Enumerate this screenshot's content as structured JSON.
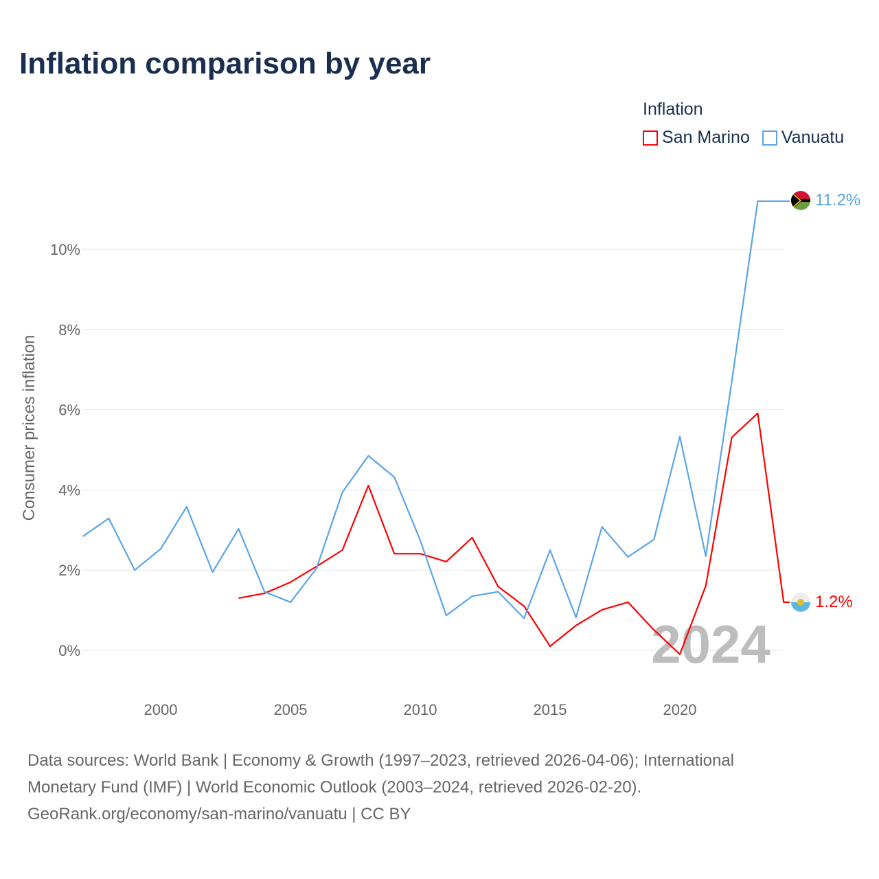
{
  "title": "Inflation comparison by year",
  "legend": {
    "title": "Inflation",
    "items": [
      {
        "label": "San Marino",
        "color": "#ff0000"
      },
      {
        "label": "Vanuatu",
        "color": "#5ba4e6"
      }
    ]
  },
  "watermark_year": "2024",
  "end_labels": {
    "vanuatu": "11.2%",
    "san_marino": "1.2%"
  },
  "footer": {
    "line1": "Data sources: World Bank | Economy & Growth (1997–2023, retrieved 2026-04-06); International",
    "line2": "Monetary Fund (IMF) | World Economic Outlook (2003–2024, retrieved 2026-02-20).",
    "line3": "GeoRank.org/economy/san-marino/vanuatu | CC BY"
  },
  "chart_data": {
    "type": "line",
    "title": "Inflation comparison by year",
    "xlabel": "",
    "ylabel": "Consumer prices inflation",
    "xlim": [
      1997,
      2024
    ],
    "ylim": [
      -1,
      12
    ],
    "xticks": [
      2000,
      2005,
      2010,
      2015,
      2020
    ],
    "yticks": [
      {
        "v": 0,
        "label": "0%"
      },
      {
        "v": 2,
        "label": "2%"
      },
      {
        "v": 4,
        "label": "4%"
      },
      {
        "v": 6,
        "label": "6%"
      },
      {
        "v": 8,
        "label": "8%"
      },
      {
        "v": 10,
        "label": "10%"
      }
    ],
    "grid": true,
    "legend_position": "top-right",
    "series": [
      {
        "name": "San Marino",
        "color": "#ff0000",
        "x": [
          2003,
          2004,
          2005,
          2006,
          2007,
          2008,
          2009,
          2010,
          2011,
          2012,
          2013,
          2014,
          2015,
          2016,
          2017,
          2018,
          2019,
          2020,
          2021,
          2022,
          2023,
          2024
        ],
        "values": [
          1.3,
          1.42,
          1.7,
          2.09,
          2.5,
          4.11,
          2.41,
          2.41,
          2.21,
          2.81,
          1.59,
          1.1,
          0.1,
          0.62,
          1.01,
          1.2,
          0.51,
          -0.1,
          1.61,
          5.31,
          5.91,
          1.2
        ]
      },
      {
        "name": "Vanuatu",
        "color": "#5ba4e6",
        "x": [
          1997,
          1998,
          1999,
          2000,
          2001,
          2002,
          2003,
          2004,
          2005,
          2006,
          2007,
          2008,
          2009,
          2010,
          2011,
          2012,
          2013,
          2014,
          2015,
          2016,
          2017,
          2018,
          2019,
          2020,
          2021,
          2022,
          2023
        ],
        "values": [
          2.84,
          3.29,
          2.0,
          2.53,
          3.58,
          1.95,
          3.03,
          1.46,
          1.2,
          2.04,
          3.94,
          4.85,
          4.32,
          2.74,
          0.87,
          1.35,
          1.46,
          0.8,
          2.5,
          0.82,
          3.08,
          2.33,
          2.76,
          5.33,
          2.35,
          6.7,
          11.2
        ]
      }
    ]
  }
}
